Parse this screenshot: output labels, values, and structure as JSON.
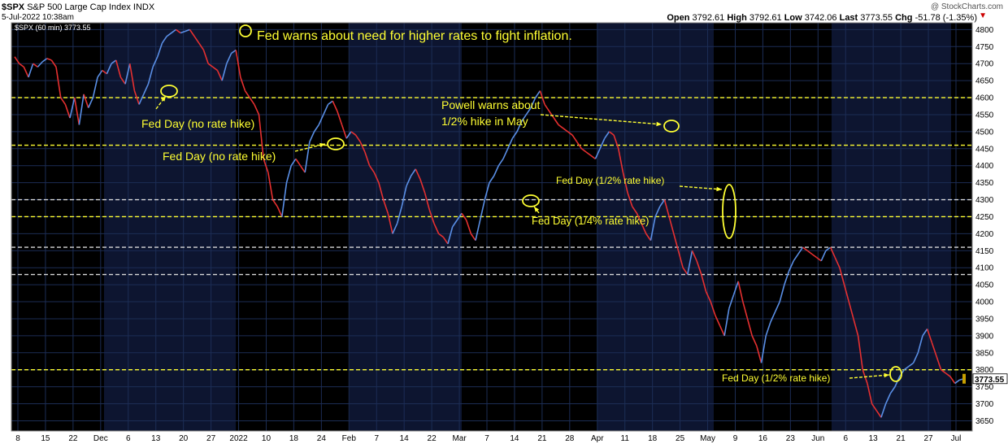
{
  "header": {
    "symbol": "$SPX",
    "description": "S&P 500 Large Cap Index",
    "exchange": "INDX",
    "date_time": "5-Jul-2022 10:38am",
    "open_label": "Open",
    "open": "3792.61",
    "high_label": "High",
    "high": "3792.61",
    "low_label": "Low",
    "low": "3742.06",
    "last_label": "Last",
    "last": "3773.55",
    "chg_label": "Chg",
    "chg": "-51.78 (-1.35%)",
    "watermark": "@ StockCharts.com",
    "legend": "$SPX (60 min) 3773.55"
  },
  "colors": {
    "background": "#000000",
    "shade_band": "#0d1530",
    "up": "#5a8fe6",
    "down": "#e63030",
    "annotation": "#ffff33",
    "dashed_white": "#d8d8d8",
    "last_price_box": "#c8a000"
  },
  "chart_data": {
    "type": "line",
    "title": "$SPX (60 min) 3773.55",
    "ylim": [
      3620,
      4820
    ],
    "y_ticks": [
      3650,
      3700,
      3750,
      3800,
      3850,
      3900,
      3950,
      4000,
      4050,
      4100,
      4150,
      4200,
      4250,
      4300,
      4350,
      4400,
      4450,
      4500,
      4550,
      4600,
      4650,
      4700,
      4750,
      4800
    ],
    "x_ticks": [
      "8",
      "15",
      "22",
      "Dec",
      "6",
      "13",
      "20",
      "27",
      "2022",
      "10",
      "18",
      "24",
      "Feb",
      "7",
      "14",
      "22",
      "Mar",
      "7",
      "14",
      "21",
      "28",
      "Apr",
      "11",
      "18",
      "25",
      "May",
      "9",
      "16",
      "23",
      "Jun",
      "6",
      "13",
      "21",
      "27",
      "Jul"
    ],
    "series": [
      {
        "values": [
          4720,
          4700,
          4690,
          4660,
          4700,
          4690,
          4705,
          4715,
          4710,
          4690,
          4600,
          4580,
          4540,
          4600,
          4520,
          4610,
          4570,
          4600,
          4660,
          4680,
          4670,
          4700,
          4710,
          4660,
          4640,
          4700,
          4620,
          4580,
          4610,
          4640,
          4690,
          4720,
          4760,
          4780,
          4790,
          4800,
          4790,
          4795,
          4800,
          4780,
          4760,
          4740,
          4700,
          4690,
          4680,
          4650,
          4700,
          4730,
          4740,
          4660,
          4620,
          4600,
          4580,
          4550,
          4420,
          4380,
          4300,
          4280,
          4250,
          4350,
          4400,
          4420,
          4400,
          4380,
          4470,
          4500,
          4520,
          4550,
          4580,
          4590,
          4560,
          4520,
          4480,
          4500,
          4490,
          4470,
          4440,
          4400,
          4380,
          4350,
          4300,
          4260,
          4200,
          4230,
          4280,
          4340,
          4370,
          4390,
          4360,
          4320,
          4270,
          4230,
          4200,
          4190,
          4170,
          4220,
          4240,
          4260,
          4240,
          4200,
          4180,
          4240,
          4300,
          4350,
          4370,
          4400,
          4420,
          4450,
          4480,
          4500,
          4530,
          4550,
          4570,
          4600,
          4620,
          4580,
          4560,
          4540,
          4520,
          4510,
          4500,
          4490,
          4470,
          4450,
          4440,
          4430,
          4420,
          4450,
          4480,
          4500,
          4490,
          4450,
          4380,
          4320,
          4280,
          4260,
          4230,
          4200,
          4180,
          4250,
          4280,
          4300,
          4250,
          4200,
          4150,
          4100,
          4080,
          4150,
          4120,
          4080,
          4030,
          4000,
          3960,
          3930,
          3900,
          3980,
          4020,
          4060,
          4000,
          3950,
          3900,
          3870,
          3820,
          3900,
          3940,
          3970,
          4000,
          4050,
          4090,
          4120,
          4140,
          4160,
          4150,
          4140,
          4130,
          4120,
          4150,
          4160,
          4130,
          4100,
          4050,
          4000,
          3950,
          3900,
          3800,
          3760,
          3700,
          3680,
          3660,
          3700,
          3730,
          3750,
          3780,
          3800,
          3810,
          3820,
          3850,
          3900,
          3920,
          3880,
          3840,
          3800,
          3790,
          3780,
          3760,
          3770,
          3773.55
        ]
      }
    ]
  },
  "annotations": {
    "fed_warns": "Fed warns about need for higher rates to fight inflation.",
    "fed_day_1": "Fed Day (no rate hike)",
    "fed_day_2": "Fed Day (no rate hike)",
    "powell_line1": "Powell warns about",
    "powell_line2": "1/2% hike in May",
    "fed_day_3": "Fed Day (1/4% rate hike)",
    "fed_day_4": "Fed Day (1/2% rate hike)",
    "fed_day_5": "Fed Day (1/2% rate hike)",
    "last_price_label": "3773.55"
  }
}
